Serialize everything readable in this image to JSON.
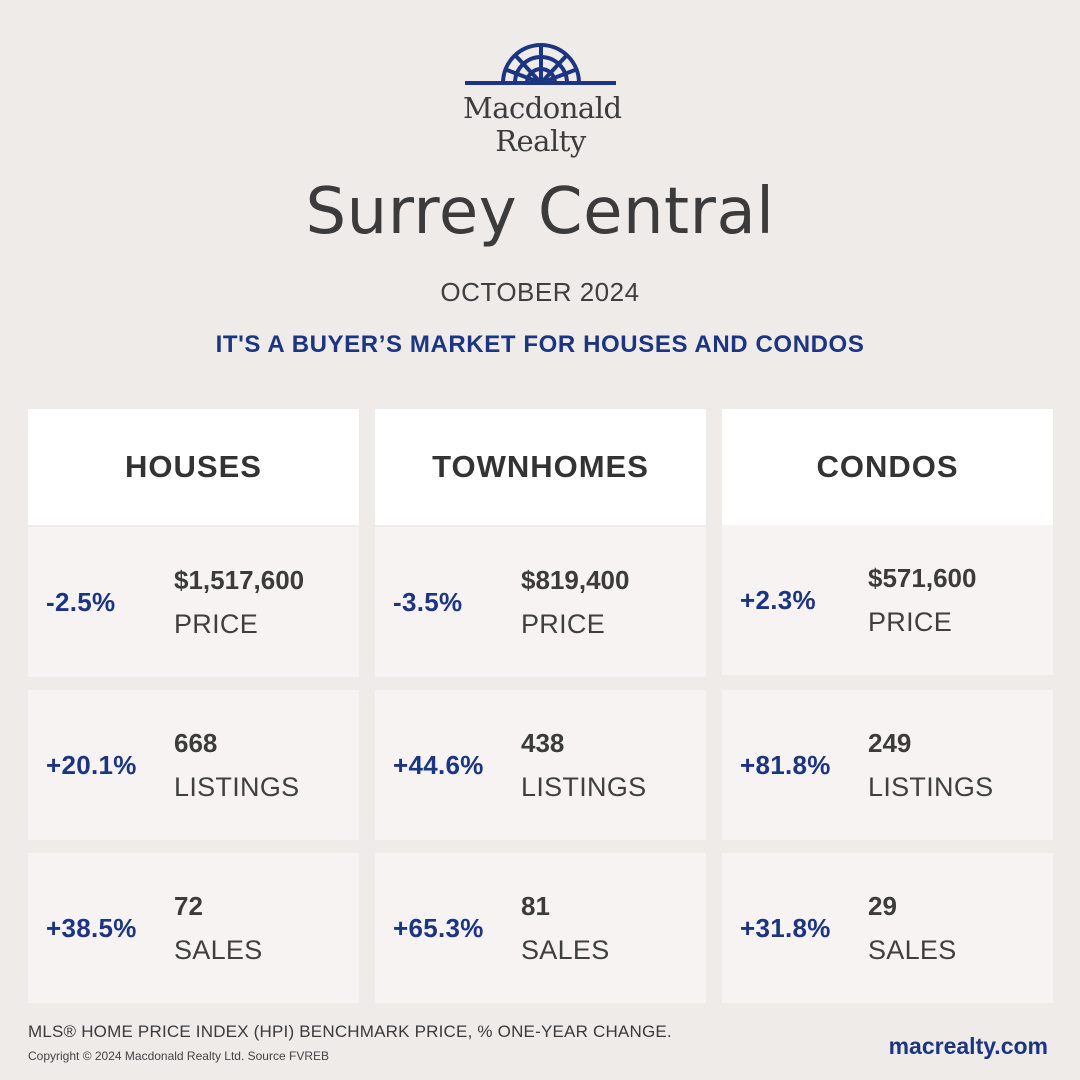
{
  "brand": {
    "logo_line1": "Macdonald",
    "logo_line2": "Realty",
    "accent_color": "#1b3582"
  },
  "title": "Surrey Central",
  "month": "OCTOBER 2024",
  "headline": "IT'S A BUYER’S MARKET FOR HOUSES AND CONDOS",
  "columns": [
    {
      "name": "HOUSES",
      "price": {
        "pct": "-2.5%",
        "value": "$1,517,600",
        "label": "PRICE"
      },
      "listings": {
        "pct": "+20.1%",
        "value": "668",
        "label": "LISTINGS"
      },
      "sales": {
        "pct": "+38.5%",
        "value": "72",
        "label": "SALES"
      }
    },
    {
      "name": "TOWNHOMES",
      "price": {
        "pct": "-3.5%",
        "value": "$819,400",
        "label": "PRICE"
      },
      "listings": {
        "pct": "+44.6%",
        "value": "438",
        "label": "LISTINGS"
      },
      "sales": {
        "pct": "+65.3%",
        "value": "81",
        "label": "SALES"
      }
    },
    {
      "name": "CONDOS",
      "price": {
        "pct": "+2.3%",
        "value": "$571,600",
        "label": "PRICE"
      },
      "listings": {
        "pct": "+81.8%",
        "value": "249",
        "label": "LISTINGS"
      },
      "sales": {
        "pct": "+31.8%",
        "value": "29",
        "label": "SALES"
      }
    }
  ],
  "footer": {
    "note": "MLS® HOME PRICE INDEX (HPI) BENCHMARK PRICE, % ONE-YEAR CHANGE.",
    "copyright": "Copyright © 2024 Macdonald Realty Ltd. Source FVREB",
    "website": "macrealty.com"
  }
}
